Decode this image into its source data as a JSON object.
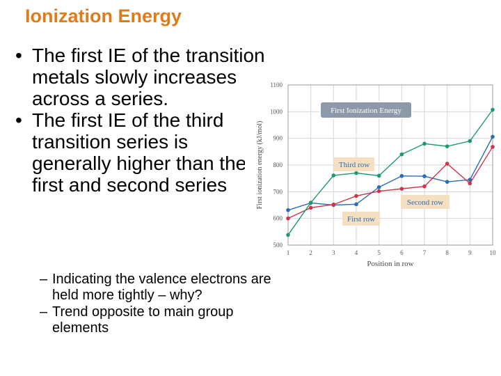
{
  "slide": {
    "title": "Ionization Energy",
    "bullets": [
      "The first IE of the transition metals slowly increases across a series.",
      "The first IE of the third transition series is generally higher than the first and second series"
    ],
    "sub_bullets": [
      "Indicating the valence electrons are held more tightly – why?",
      "Trend opposite to main group elements"
    ],
    "bullet_glyph": "•",
    "dash_glyph": "–"
  },
  "chart_data": {
    "type": "line",
    "title": "First Ionization Energy",
    "xlabel": "Position in row",
    "ylabel": "First ionization energy (kJ/mol)",
    "x": [
      1,
      2,
      3,
      4,
      5,
      6,
      7,
      8,
      9,
      10
    ],
    "xlim": [
      1,
      10
    ],
    "ylim": [
      500,
      1100
    ],
    "yticks": [
      500,
      600,
      700,
      800,
      900,
      1000,
      1100
    ],
    "grid": true,
    "series": [
      {
        "name": "First row",
        "color": "#2a6db3",
        "values": [
          631,
          658,
          650,
          653,
          717,
          759,
          758,
          737,
          745,
          906
        ]
      },
      {
        "name": "Second row",
        "color": "#d0334a",
        "values": [
          600,
          640,
          652,
          684,
          702,
          711,
          720,
          805,
          731,
          868
        ]
      },
      {
        "name": "Third row",
        "color": "#1c9a6c",
        "values": [
          538,
          659,
          761,
          770,
          760,
          840,
          880,
          870,
          890,
          1007
        ]
      }
    ],
    "colors": {
      "grid": "#d6d6d6",
      "title_box_bg": "#8c99a8",
      "label_box_bg": "#f4dfc0",
      "label_text": "#2a6db3"
    }
  }
}
